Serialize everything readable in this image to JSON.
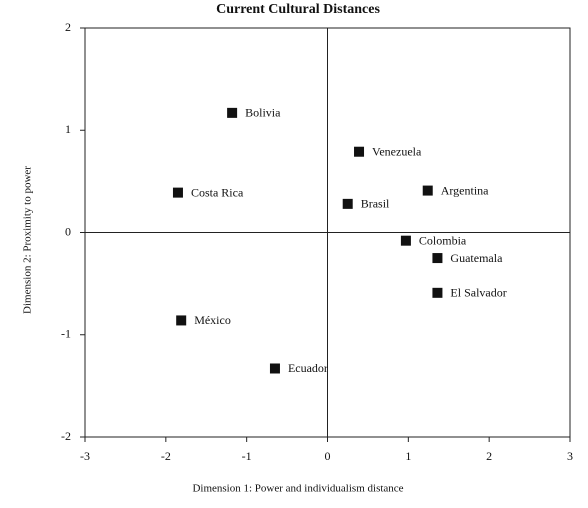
{
  "chart_data": {
    "type": "scatter",
    "title": "Current Cultural Distances",
    "x_label": "Dimension 1: Power and individualism distance",
    "y_label": "Dimension 2: Proximity to power",
    "labels": [
      "Bolivia",
      "Venezuela",
      "Costa Rica",
      "Argentina",
      "Brasil",
      "Colombia",
      "Guatemala",
      "El Salvador",
      "México",
      "Ecuador"
    ],
    "x": [
      -1.18,
      0.39,
      -1.85,
      1.24,
      0.25,
      0.97,
      1.36,
      1.36,
      -1.81,
      -0.65
    ],
    "values": [
      1.17,
      0.79,
      0.39,
      0.41,
      0.28,
      -0.08,
      -0.25,
      -0.59,
      -0.86,
      -1.33
    ],
    "color": "#111111",
    "xlim": [
      -3,
      3
    ],
    "xticks": [
      -3,
      -2,
      -1,
      0,
      1,
      2,
      3
    ],
    "ylim": [
      -2,
      2
    ],
    "yticks": [
      -2,
      -1,
      0,
      1,
      2
    ]
  }
}
